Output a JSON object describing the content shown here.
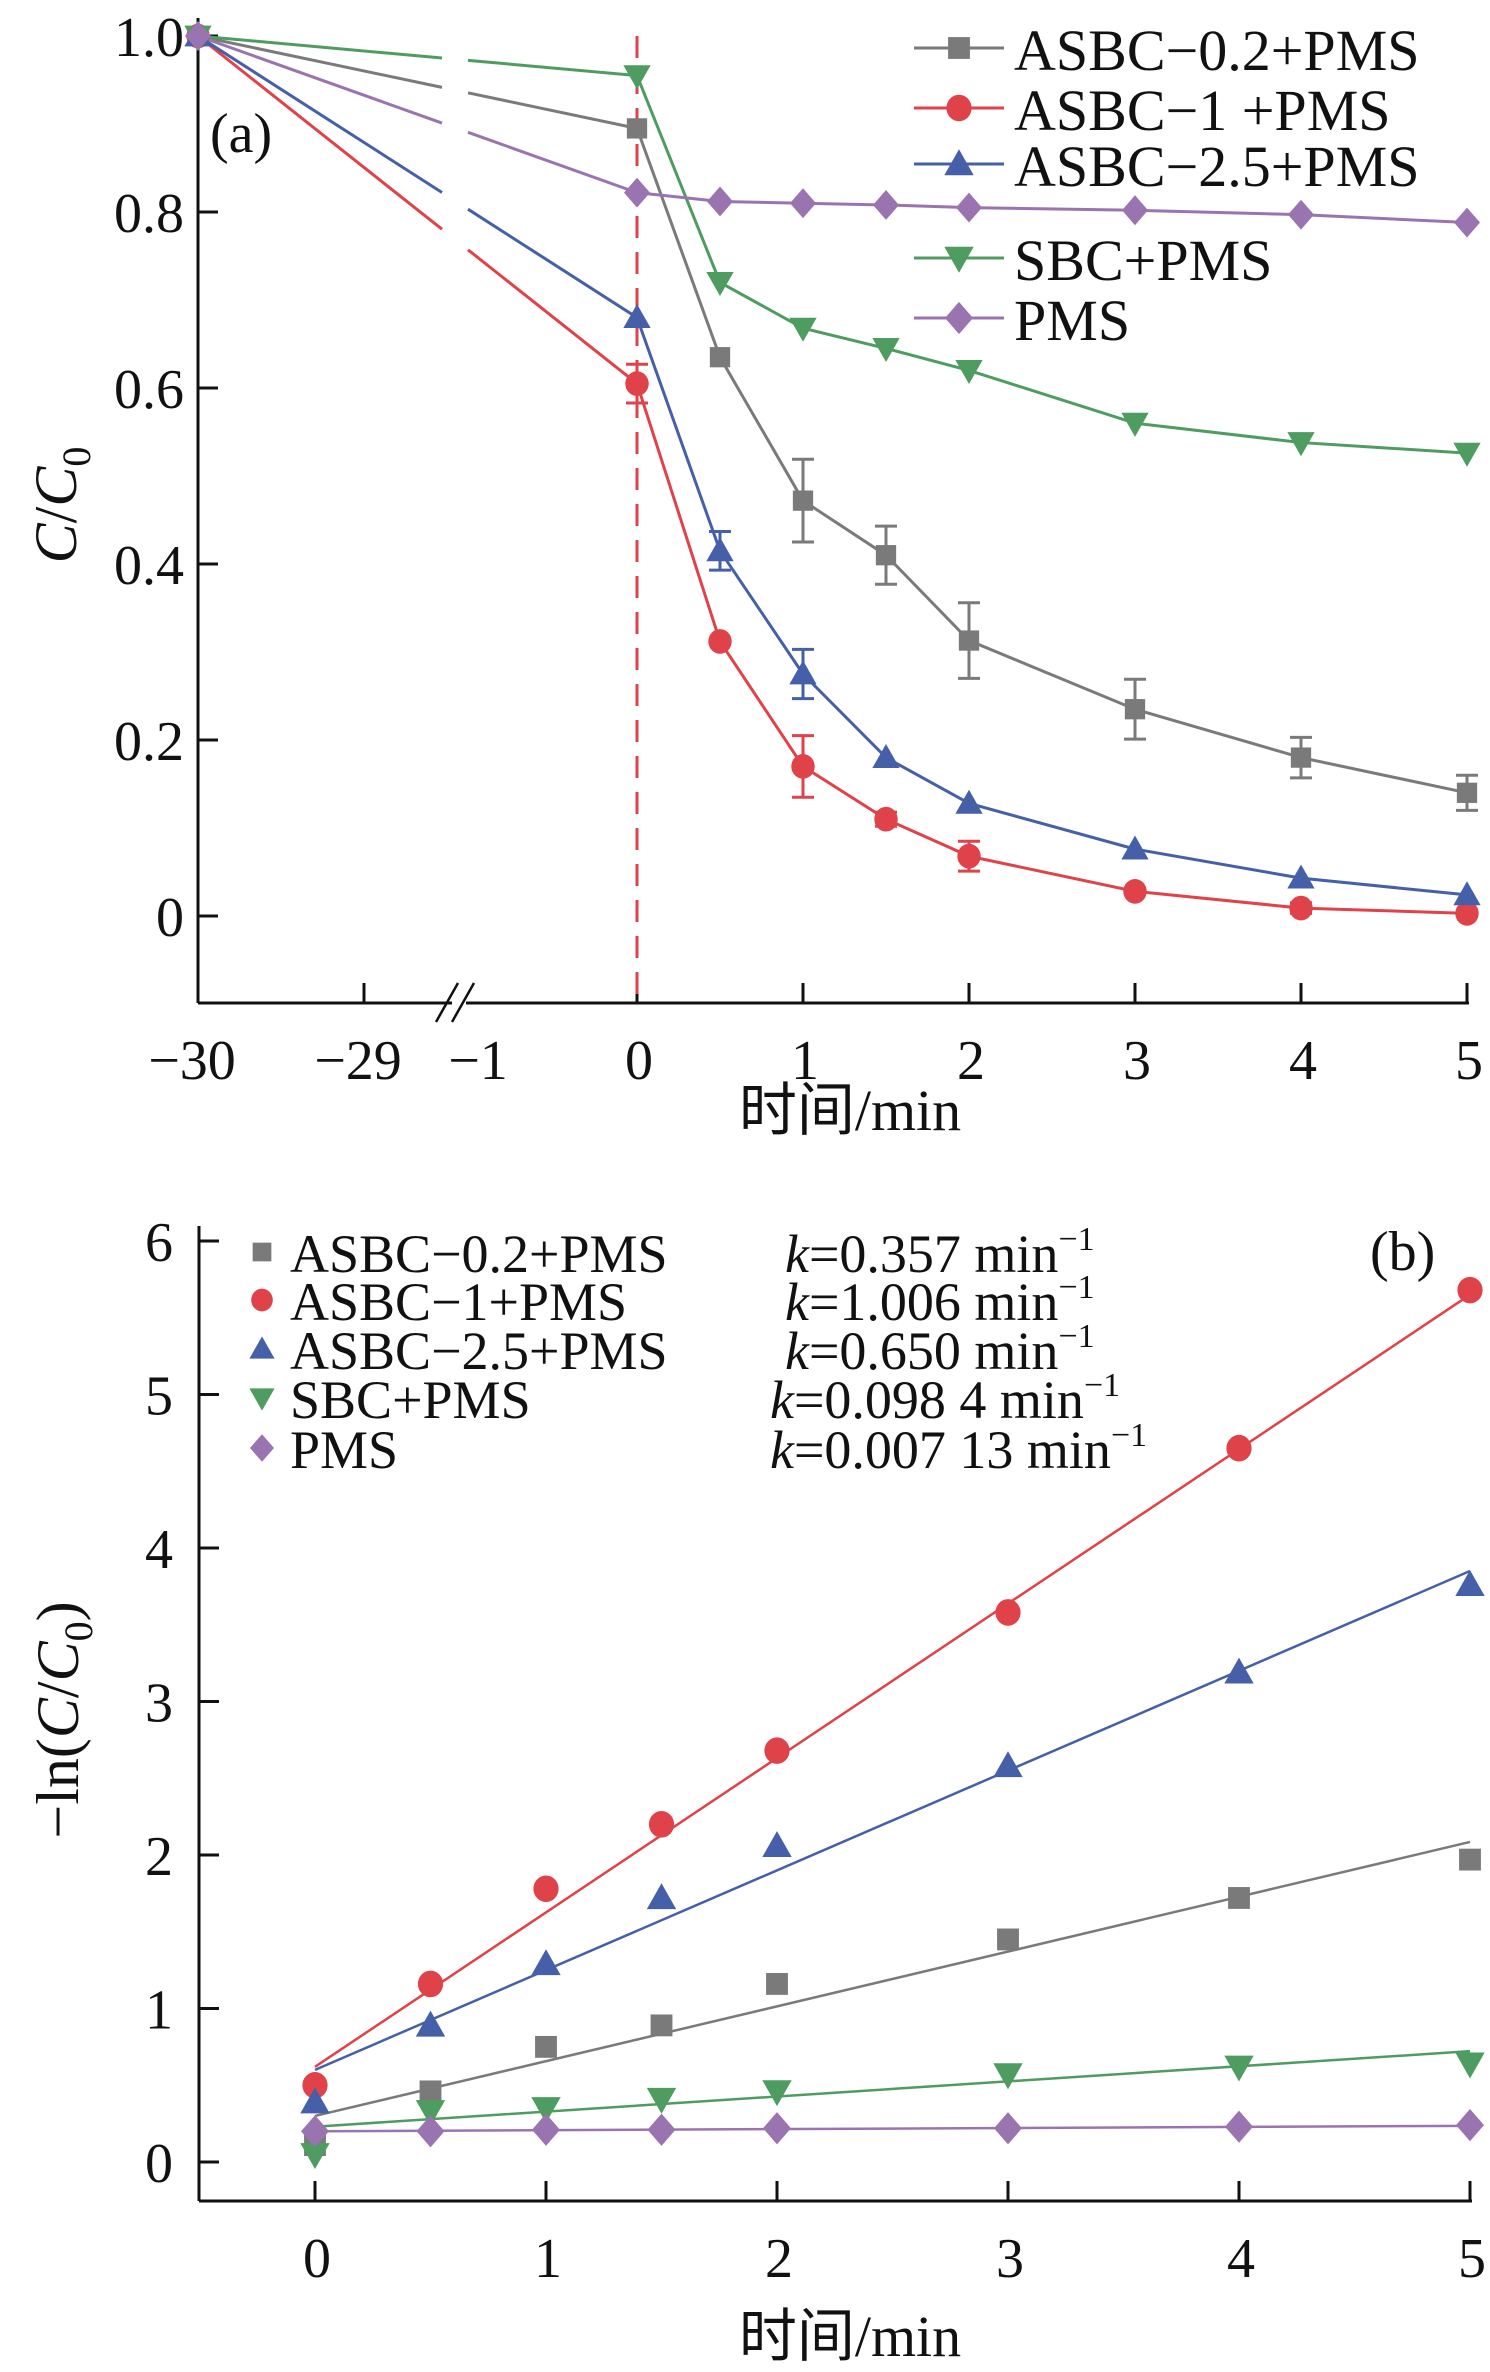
{
  "chart_data": [
    {
      "type": "line",
      "panel_label": "(a)",
      "title": "",
      "xlabel": "时间/min",
      "ylabel_main": "C/C",
      "ylabel_sub": "0",
      "ylim": [
        -0.1,
        1.0
      ],
      "yticks": [
        0,
        0.2,
        0.4,
        0.6,
        0.8,
        1.0
      ],
      "ytick_labels": [
        "0",
        "0.2",
        "0.4",
        "0.6",
        "0.8",
        "1.0"
      ],
      "xticks_pre_break": [
        -30,
        -29
      ],
      "xtick_labels_pre_break": [
        "−30",
        "−29"
      ],
      "xticks_post_break": [
        -1,
        0,
        1,
        2,
        3,
        4,
        5
      ],
      "xtick_labels_post_break": [
        "−1",
        "0",
        "1",
        "2",
        "3",
        "4",
        "5"
      ],
      "axis_break": "between −29 and −1",
      "vertical_marker_x": 0,
      "legend_position": "top-right",
      "x": [
        -30,
        0,
        0.5,
        1,
        1.5,
        2,
        3,
        4,
        5
      ],
      "series": [
        {
          "name": "ASBC−0.2+PMS",
          "color": "#7a7a7a",
          "marker": "square",
          "values": [
            1.0,
            0.895,
            0.635,
            0.472,
            0.41,
            0.313,
            0.235,
            0.18,
            0.14
          ],
          "errors": [
            0,
            0,
            0,
            0.047,
            0.033,
            0.043,
            0.034,
            0.023,
            0.02
          ]
        },
        {
          "name": "ASBC−1 +PMS",
          "color": "#e0424a",
          "marker": "circle",
          "values": [
            1.0,
            0.605,
            0.312,
            0.17,
            0.11,
            0.068,
            0.028,
            0.009,
            0.003
          ],
          "errors": [
            0,
            0.022,
            0,
            0.035,
            0.008,
            0.017,
            0,
            0.006,
            0
          ]
        },
        {
          "name": "ASBC−2.5+PMS",
          "color": "#4560a8",
          "marker": "triangle-up",
          "values": [
            1.0,
            0.68,
            0.415,
            0.275,
            0.18,
            0.128,
            0.076,
            0.043,
            0.024
          ],
          "errors": [
            0,
            0,
            0.022,
            0.028,
            0,
            0,
            0,
            0,
            0
          ]
        },
        {
          "name": "SBC+PMS",
          "color": "#4e9c60",
          "marker": "triangle-down",
          "values": [
            1.0,
            0.955,
            0.72,
            0.668,
            0.645,
            0.62,
            0.56,
            0.538,
            0.526
          ],
          "errors": [
            0,
            0,
            0,
            0,
            0,
            0,
            0,
            0,
            0
          ]
        },
        {
          "name": "PMS",
          "color": "#9a74b0",
          "marker": "diamond",
          "values": [
            1.0,
            0.822,
            0.812,
            0.81,
            0.808,
            0.805,
            0.802,
            0.797,
            0.788
          ],
          "errors": [
            0,
            0,
            0,
            0,
            0,
            0,
            0,
            0,
            0
          ]
        }
      ]
    },
    {
      "type": "scatter",
      "panel_label": "(b)",
      "title": "",
      "xlabel": "时间/min",
      "ylabel": "−ln(C/C0)",
      "ylabel_parts": {
        "prefix": "−ln(",
        "italic": "C",
        "slash": "/",
        "italic2": "C",
        "sub": "0",
        "suffix": ")"
      },
      "xlim": [
        -0.5,
        5
      ],
      "ylim": [
        -0.3,
        6
      ],
      "xticks": [
        0,
        1,
        2,
        3,
        4,
        5
      ],
      "xtick_labels": [
        "0",
        "1",
        "2",
        "3",
        "4",
        "5"
      ],
      "yticks": [
        0,
        1,
        2,
        3,
        4,
        5,
        6
      ],
      "ytick_labels": [
        "0",
        "1",
        "2",
        "3",
        "4",
        "5",
        "6"
      ],
      "legend_position": "top-left",
      "x": [
        0,
        0.5,
        1,
        1.5,
        2,
        3,
        4,
        5
      ],
      "series": [
        {
          "name": "ASBC−0.2+PMS",
          "k_label": "k=0.357 min−1",
          "k_prefix": "k",
          "k_value": "=0.357 min",
          "k_exp": "−1",
          "color": "#7a7a7a",
          "marker": "square",
          "values": [
            0.11,
            0.46,
            0.75,
            0.89,
            1.16,
            1.45,
            1.72,
            1.97
          ],
          "fit": {
            "slope": 0.357,
            "intercept": 0.3
          }
        },
        {
          "name": "ASBC−1+PMS",
          "k_label": "k=1.006 min−1",
          "k_prefix": "k",
          "k_value": "=1.006 min",
          "k_exp": "−1",
          "color": "#e0424a",
          "marker": "circle",
          "values": [
            0.5,
            1.16,
            1.78,
            2.2,
            2.68,
            3.58,
            4.65,
            5.68
          ],
          "fit": {
            "slope": 1.006,
            "intercept": 0.62
          }
        },
        {
          "name": "ASBC−2.5+PMS",
          "k_label": "k=0.650 min−1",
          "k_prefix": "k",
          "k_value": "=0.650 min",
          "k_exp": "−1",
          "color": "#4560a8",
          "marker": "triangle-up",
          "values": [
            0.39,
            0.89,
            1.29,
            1.72,
            2.06,
            2.58,
            3.19,
            3.76
          ],
          "fit": {
            "slope": 0.65,
            "intercept": 0.6
          }
        },
        {
          "name": "SBC+PMS",
          "k_label": "k=0.098 4 min−1",
          "k_prefix": "k",
          "k_value": "=0.098 4 min",
          "k_exp": "−1",
          "color": "#4e9c60",
          "marker": "triangle-down",
          "values": [
            0.05,
            0.33,
            0.35,
            0.41,
            0.46,
            0.57,
            0.62,
            0.64
          ],
          "fit": {
            "slope": 0.0984,
            "intercept": 0.23
          }
        },
        {
          "name": "PMS",
          "k_label": "k=0.007 13 min−1",
          "k_prefix": "k",
          "k_value": "=0.007 13 min",
          "k_exp": "−1",
          "color": "#9a74b0",
          "marker": "diamond",
          "values": [
            0.2,
            0.2,
            0.21,
            0.21,
            0.22,
            0.22,
            0.23,
            0.24
          ],
          "fit": {
            "slope": 0.00713,
            "intercept": 0.2
          }
        }
      ]
    }
  ]
}
